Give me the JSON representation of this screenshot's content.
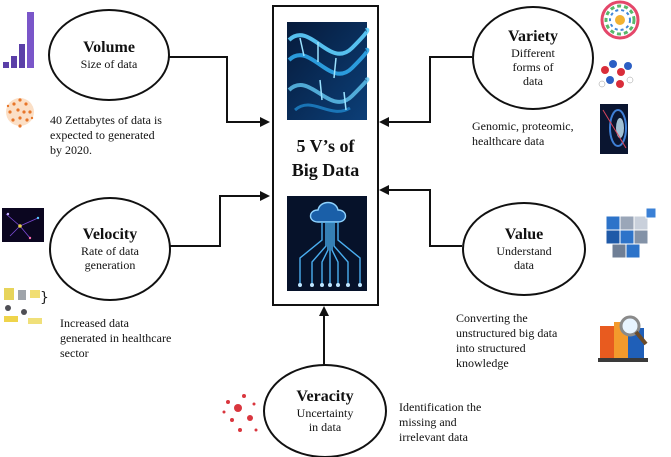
{
  "center": {
    "title_line1": "5 V’s of",
    "title_line2": "Big Data"
  },
  "nodes": {
    "volume": {
      "title": "Volume",
      "sub_lines": [
        "Size of data"
      ]
    },
    "velocity": {
      "title": "Velocity",
      "sub_lines": [
        "Rate of data",
        "generation"
      ]
    },
    "veracity": {
      "title": "Veracity",
      "sub_lines": [
        "Uncertainty",
        "in data"
      ]
    },
    "variety": {
      "title": "Variety",
      "sub_lines": [
        "Different",
        "forms of",
        "data"
      ]
    },
    "value": {
      "title": "Value",
      "sub_lines": [
        "Understand",
        "data"
      ]
    }
  },
  "notes": {
    "volume": [
      "40 Zettabytes of data is",
      "expected to generated",
      "by 2020."
    ],
    "velocity": [
      "Increased data",
      "generated in healthcare",
      "sector"
    ],
    "veracity": [
      "Identification the",
      "missing and",
      "irrelevant data"
    ],
    "variety": [
      "Genomic, proteomic,",
      "healthcare data"
    ],
    "value": [
      "Converting the",
      "unstructured big data",
      "into structured",
      "knowledge"
    ]
  },
  "icons": {
    "volume_chart": "bar-chart-icon",
    "volume_dots": "particle-sphere-icon",
    "velocity_network": "network-image-icon",
    "velocity_people": "people-graphic-icon",
    "variety_wheel": "color-wheel-icon",
    "variety_molecule": "molecule-icon",
    "variety_tunnel": "light-tunnel-icon",
    "value_cubes": "cubes-icon",
    "value_folders": "folders-magnifier-icon",
    "veracity_dots": "scatter-dots-icon",
    "center_dna": "dna-helix-image",
    "center_cloud": "cloud-circuit-image"
  },
  "colors": {
    "accent_blue": "#1a8fd6",
    "dark_navy": "#0a1830",
    "red_dots": "#d9363e",
    "purple": "#5b3fa8"
  }
}
